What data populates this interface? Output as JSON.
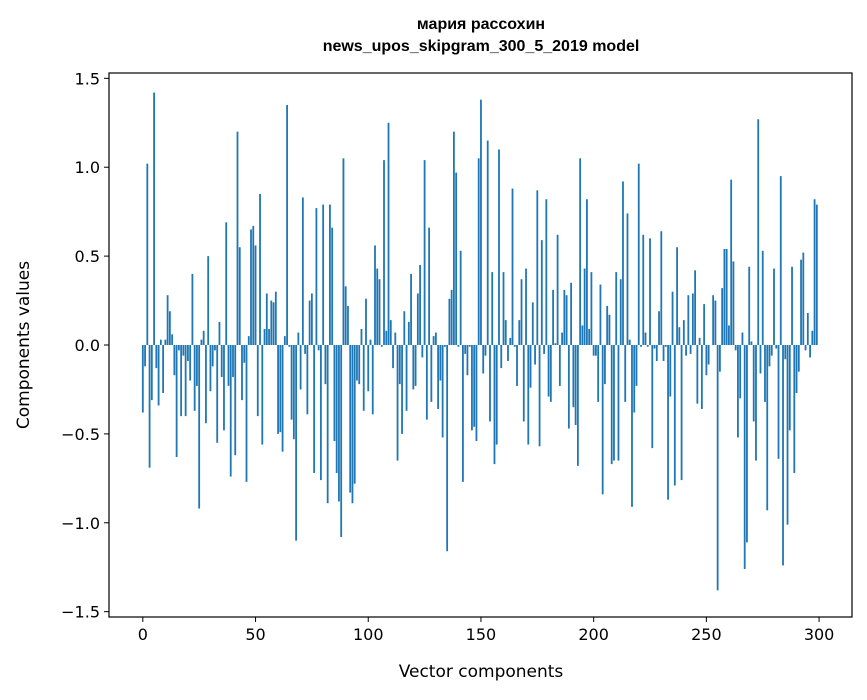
{
  "chart_data": {
    "type": "bar",
    "title_line1": "мария рассохин",
    "title_line2": "news_upos_skipgram_300_5_2019 model",
    "xlabel": "Vector components",
    "ylabel": "Components values",
    "xlim": [
      -15,
      314.6
    ],
    "ylim": [
      -1.53,
      1.53
    ],
    "xticks": [
      "0",
      "50",
      "100",
      "150",
      "200",
      "250",
      "300"
    ],
    "yticks": [
      "−1.5",
      "−1.0",
      "−0.5",
      "0.0",
      "0.5",
      "1.0",
      "1.5"
    ],
    "grid": false,
    "bar_color": "#1f77b4",
    "values": [
      -0.38,
      -0.12,
      1.02,
      -0.69,
      -0.31,
      1.42,
      -0.13,
      -0.34,
      0.03,
      -0.27,
      0.03,
      0.28,
      0.19,
      0.06,
      -0.17,
      -0.63,
      -0.03,
      -0.4,
      -0.06,
      -0.4,
      -0.09,
      -0.2,
      0.4,
      -0.37,
      -0.23,
      -0.92,
      0.03,
      0.08,
      -0.44,
      0.5,
      -0.26,
      -0.12,
      -0.03,
      -0.55,
      0.13,
      -0.18,
      -0.48,
      0.69,
      -0.23,
      -0.74,
      -0.18,
      -0.62,
      1.2,
      0.55,
      -0.31,
      -0.1,
      -0.77,
      0.05,
      0.65,
      0.67,
      0.56,
      -0.4,
      0.85,
      -0.56,
      0.09,
      0.29,
      0.09,
      0.25,
      0.24,
      0.3,
      -0.5,
      -0.49,
      -0.6,
      0.05,
      1.35,
      -0.01,
      -0.42,
      -0.53,
      -1.1,
      0.07,
      -0.25,
      0.83,
      -0.05,
      -0.39,
      0.25,
      0.29,
      -0.72,
      0.77,
      -0.03,
      -0.76,
      0.79,
      -0.22,
      -0.89,
      0.79,
      0.66,
      -0.54,
      -0.72,
      -0.88,
      -1.08,
      1.05,
      0.33,
      0.22,
      -0.83,
      -0.89,
      -0.78,
      -0.2,
      -0.22,
      0.09,
      -0.37,
      0.26,
      -0.26,
      0.03,
      -0.39,
      0.56,
      0.43,
      0.37,
      -0.01,
      1.04,
      0.08,
      1.25,
      0.14,
      -0.13,
      0.07,
      -0.65,
      -0.22,
      -0.5,
      0.19,
      -0.37,
      0.13,
      0.4,
      -0.25,
      -0.23,
      0.29,
      0.45,
      -0.07,
      1.04,
      -0.42,
      0.66,
      -0.32,
      0.05,
      0.07,
      -0.36,
      -0.2,
      -0.52,
      -0.01,
      -1.16,
      0.26,
      0.31,
      1.2,
      0.97,
      -0.01,
      0.53,
      -0.77,
      -0.05,
      -0.17,
      -0.01,
      -0.48,
      -0.46,
      -0.54,
      1.05,
      1.38,
      -0.16,
      -0.06,
      1.15,
      -0.43,
      0.41,
      -0.67,
      -0.56,
      1.1,
      -0.13,
      0.41,
      0.14,
      -0.09,
      0.04,
      0.88,
      -0.01,
      -0.23,
      0.14,
      0.37,
      -0.43,
      0.43,
      -0.56,
      -0.24,
      0.24,
      -0.11,
      0.87,
      -0.57,
      0.59,
      -0.05,
      0.82,
      -0.29,
      -0.32,
      0.31,
      0.01,
      0.62,
      -0.23,
      0.07,
      0.31,
      0.28,
      -0.47,
      0.35,
      -0.35,
      -0.45,
      -0.68,
      1.05,
      0.11,
      0.43,
      0.82,
      0.09,
      0.41,
      -0.06,
      -0.06,
      -0.32,
      0.34,
      -0.84,
      -0.22,
      0.22,
      0.17,
      -0.67,
      -0.65,
      0.41,
      -0.65,
      0.37,
      0.92,
      -0.32,
      0.74,
      0.03,
      -0.91,
      -0.38,
      -0.23,
      1.02,
      -0.01,
      0.62,
      0.07,
      -0.01,
      0.6,
      -0.58,
      -0.02,
      -0.09,
      0.19,
      0.64,
      -0.09,
      -0.01,
      -0.87,
      -0.29,
      0.3,
      -0.79,
      0.55,
      0.1,
      -0.76,
      0.14,
      -0.06,
      0.28,
      -0.05,
      0.29,
      0.42,
      -0.33,
      0.04,
      -0.36,
      0.23,
      -0.17,
      -0.11,
      0.0,
      0.28,
      0.25,
      -1.38,
      -0.15,
      0.32,
      0.54,
      0.54,
      0.11,
      0.93,
      0.47,
      -0.03,
      -0.52,
      -0.3,
      0.07,
      -1.26,
      -1.11,
      0.44,
      0.02,
      -0.43,
      -0.65,
      1.27,
      -0.16,
      0.53,
      -0.32,
      -0.93,
      -0.12,
      -0.06,
      0.43,
      -0.02,
      -0.64,
      0.95,
      -1.24,
      -0.08,
      -1.01,
      -0.48,
      0.44,
      -0.72,
      -0.27,
      -0.15,
      0.48,
      0.52,
      -0.03,
      0.18,
      -0.07,
      0.08,
      0.82,
      0.79
    ]
  }
}
